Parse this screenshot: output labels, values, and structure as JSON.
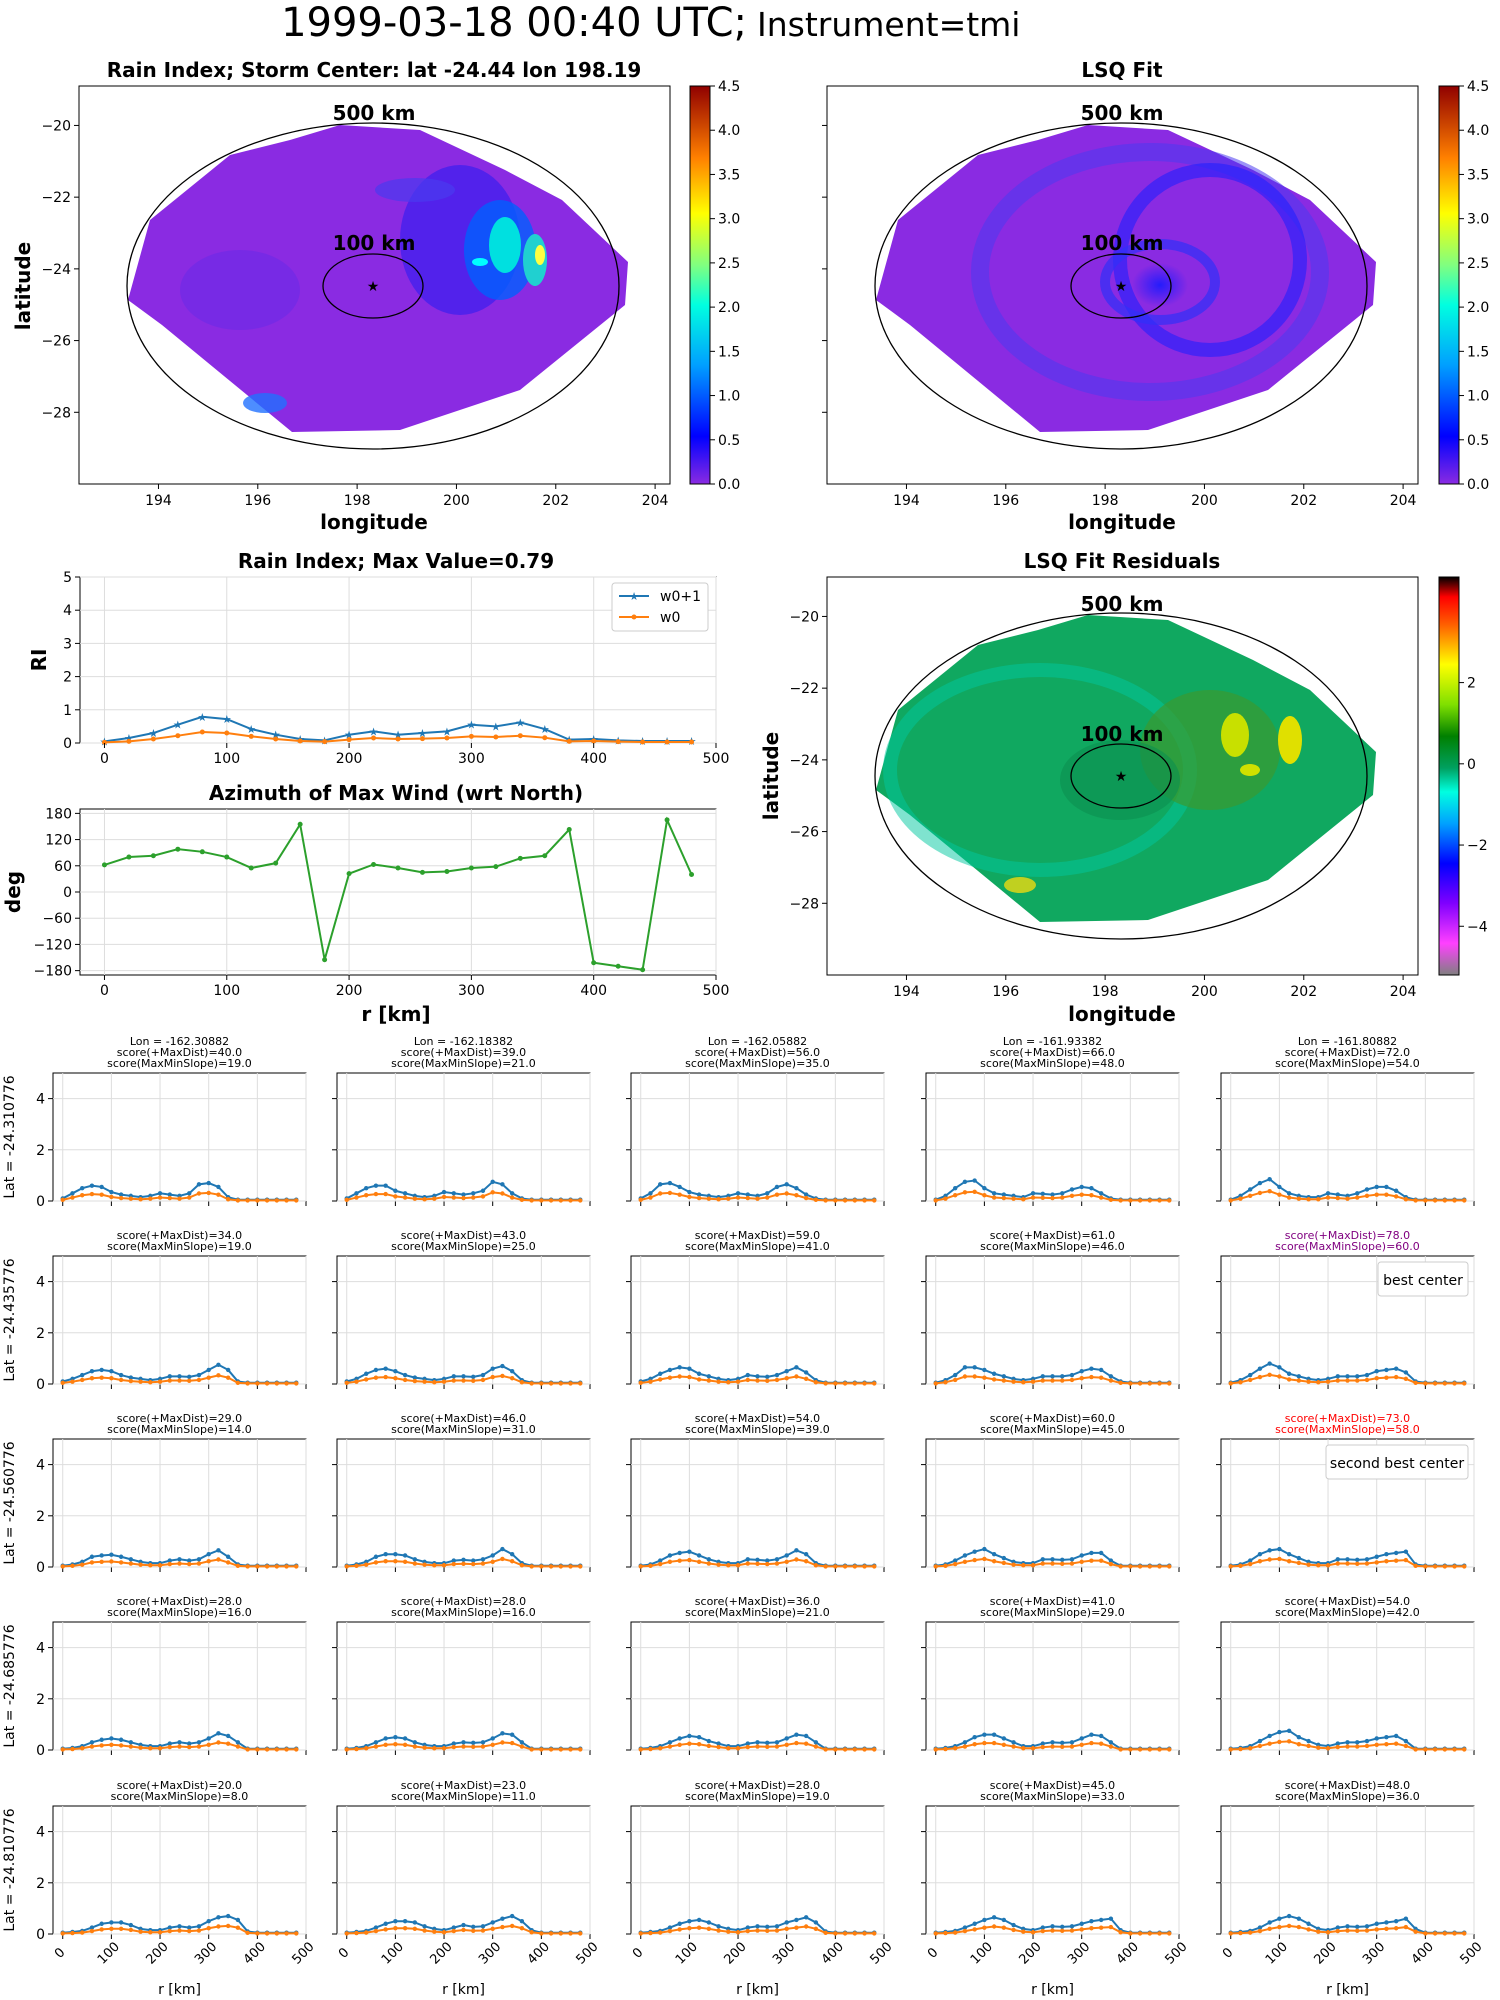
{
  "page": {
    "title_time": "1999-03-18 00:40 UTC;",
    "title_instrument": "Instrument=tmi"
  },
  "colors": {
    "w0p1": "#1f77b4",
    "w0": "#ff7f0e",
    "azimuth": "#2ca02c",
    "best": "#800080",
    "second_best": "#ff0000",
    "rain_background": "#8a2be2",
    "residual_background": "#10a860"
  },
  "map_ticks": {
    "lon": [
      194,
      196,
      198,
      200,
      202,
      204
    ],
    "lat": [
      -20,
      -22,
      -24,
      -26,
      -28
    ]
  },
  "rain_map": {
    "title": "Rain Index; Storm Center: lat -24.44 lon 198.19",
    "xlabel": "longitude",
    "ylabel": "latitude",
    "ring_outer": "500 km",
    "ring_inner": "100 km",
    "colorbar_ticks": [
      "0.0",
      "0.5",
      "1.0",
      "1.5",
      "2.0",
      "2.5",
      "3.0",
      "3.5",
      "4.0",
      "4.5"
    ],
    "colormap": "jet"
  },
  "lsq_map": {
    "title": "LSQ Fit",
    "ring_outer": "500 km",
    "ring_inner": "100 km",
    "xlabel": "longitude",
    "colorbar_ticks": [
      "0.0",
      "0.5",
      "1.0",
      "1.5",
      "2.0",
      "2.5",
      "3.0",
      "3.5",
      "4.0",
      "4.5"
    ],
    "colormap": "jet"
  },
  "residual_map": {
    "title": "LSQ Fit Residuals",
    "ring_outer": "500 km",
    "ring_inner": "100 km",
    "xlabel": "longitude",
    "ylabel": "latitude",
    "colorbar_ticks": [
      "2",
      "0",
      "−2",
      "−4"
    ],
    "colormap": "gist_ncar"
  },
  "rain_profile": {
    "title": "Rain Index; Max Value=0.79",
    "ylabel": "RI",
    "legend": [
      "w0+1",
      "w0"
    ],
    "yticks": [
      "0",
      "1",
      "2",
      "3",
      "4",
      "5"
    ],
    "xticks": [
      "0",
      "100",
      "200",
      "300",
      "400",
      "500"
    ]
  },
  "azimuth_plot": {
    "title": "Azimuth of Max Wind (wrt North)",
    "ylabel": "deg",
    "xlabel": "r [km]",
    "yticks": [
      "180",
      "120",
      "60",
      "0",
      "−60",
      "−120",
      "−180"
    ],
    "xticks": [
      "0",
      "100",
      "200",
      "300",
      "400",
      "500"
    ]
  },
  "grid": {
    "lon_header": [
      "Lon = -162.30882",
      "Lon = -162.18382",
      "Lon = -162.05882",
      "Lon = -161.93382",
      "Lon = -161.80882"
    ],
    "row_labels": [
      "Lat = -24.310776",
      "Lat = -24.435776",
      "Lat = -24.560776",
      "Lat = -24.685776",
      "Lat = -24.810776"
    ],
    "scores": [
      [
        [
          "score(+MaxDist)=40.0",
          "score(MaxMinSlope)=19.0"
        ],
        [
          "score(+MaxDist)=39.0",
          "score(MaxMinSlope)=21.0"
        ],
        [
          "score(+MaxDist)=56.0",
          "score(MaxMinSlope)=35.0"
        ],
        [
          "score(+MaxDist)=66.0",
          "score(MaxMinSlope)=48.0"
        ],
        [
          "score(+MaxDist)=72.0",
          "score(MaxMinSlope)=54.0"
        ]
      ],
      [
        [
          "score(+MaxDist)=34.0",
          "score(MaxMinSlope)=19.0"
        ],
        [
          "score(+MaxDist)=43.0",
          "score(MaxMinSlope)=25.0"
        ],
        [
          "score(+MaxDist)=59.0",
          "score(MaxMinSlope)=41.0"
        ],
        [
          "score(+MaxDist)=61.0",
          "score(MaxMinSlope)=46.0"
        ],
        [
          "score(+MaxDist)=78.0",
          "score(MaxMinSlope)=60.0"
        ]
      ],
      [
        [
          "score(+MaxDist)=29.0",
          "score(MaxMinSlope)=14.0"
        ],
        [
          "score(+MaxDist)=46.0",
          "score(MaxMinSlope)=31.0"
        ],
        [
          "score(+MaxDist)=54.0",
          "score(MaxMinSlope)=39.0"
        ],
        [
          "score(+MaxDist)=60.0",
          "score(MaxMinSlope)=45.0"
        ],
        [
          "score(+MaxDist)=73.0",
          "score(MaxMinSlope)=58.0"
        ]
      ],
      [
        [
          "score(+MaxDist)=28.0",
          "score(MaxMinSlope)=16.0"
        ],
        [
          "score(+MaxDist)=28.0",
          "score(MaxMinSlope)=16.0"
        ],
        [
          "score(+MaxDist)=36.0",
          "score(MaxMinSlope)=21.0"
        ],
        [
          "score(+MaxDist)=41.0",
          "score(MaxMinSlope)=29.0"
        ],
        [
          "score(+MaxDist)=54.0",
          "score(MaxMinSlope)=42.0"
        ]
      ],
      [
        [
          "score(+MaxDist)=20.0",
          "score(MaxMinSlope)=8.0"
        ],
        [
          "score(+MaxDist)=23.0",
          "score(MaxMinSlope)=11.0"
        ],
        [
          "score(+MaxDist)=28.0",
          "score(MaxMinSlope)=19.0"
        ],
        [
          "score(+MaxDist)=45.0",
          "score(MaxMinSlope)=33.0"
        ],
        [
          "score(+MaxDist)=48.0",
          "score(MaxMinSlope)=36.0"
        ]
      ]
    ],
    "best_label": "best center",
    "second_best_label": "second best center",
    "yticks": [
      "0",
      "2",
      "4"
    ],
    "xticks": [
      "0",
      "100",
      "200",
      "300",
      "400",
      "500"
    ],
    "xlabel": "r [km]"
  },
  "chart_data": [
    {
      "type": "line",
      "name": "rain_index_profile",
      "x": [
        0,
        20,
        40,
        60,
        80,
        100,
        120,
        140,
        160,
        180,
        200,
        220,
        240,
        260,
        280,
        300,
        320,
        340,
        360,
        380,
        400,
        420,
        440,
        460,
        480
      ],
      "series": [
        {
          "name": "w0+1",
          "values": [
            0.05,
            0.15,
            0.3,
            0.55,
            0.79,
            0.72,
            0.42,
            0.25,
            0.12,
            0.08,
            0.25,
            0.35,
            0.25,
            0.3,
            0.35,
            0.55,
            0.5,
            0.62,
            0.42,
            0.1,
            0.12,
            0.08,
            0.06,
            0.06,
            0.06
          ]
        },
        {
          "name": "w0",
          "values": [
            0.02,
            0.05,
            0.12,
            0.22,
            0.33,
            0.3,
            0.2,
            0.12,
            0.06,
            0.04,
            0.1,
            0.15,
            0.12,
            0.13,
            0.15,
            0.2,
            0.18,
            0.22,
            0.16,
            0.05,
            0.06,
            0.04,
            0.03,
            0.03,
            0.03
          ]
        }
      ],
      "ylim": [
        0,
        5
      ],
      "xlim": [
        -20,
        500
      ]
    },
    {
      "type": "line",
      "name": "azimuth_of_max_wind",
      "x": [
        0,
        20,
        40,
        60,
        80,
        100,
        120,
        140,
        160,
        180,
        200,
        220,
        240,
        260,
        280,
        300,
        320,
        340,
        360,
        380,
        400,
        420,
        440,
        460,
        480
      ],
      "values": [
        62,
        80,
        83,
        98,
        92,
        80,
        55,
        66,
        155,
        -155,
        42,
        63,
        55,
        45,
        47,
        55,
        58,
        77,
        83,
        143,
        -162,
        -170,
        -178,
        165,
        40
      ],
      "ylim": [
        -180,
        180
      ],
      "xlim": [
        -20,
        500
      ]
    },
    {
      "type": "line",
      "name": "candidate_center_profiles",
      "x": [
        0,
        20,
        40,
        60,
        80,
        100,
        120,
        140,
        160,
        180,
        200,
        220,
        240,
        260,
        280,
        300,
        320,
        340,
        360,
        380,
        400,
        420,
        440,
        460,
        480
      ],
      "ylim": [
        0,
        5
      ],
      "series_names": [
        "w0+1",
        "w0"
      ],
      "w0_ratio": 0.45,
      "rows": [
        [
          [
            0.1,
            0.3,
            0.5,
            0.6,
            0.55,
            0.35,
            0.25,
            0.2,
            0.15,
            0.2,
            0.3,
            0.25,
            0.2,
            0.3,
            0.65,
            0.7,
            0.55,
            0.15,
            0.05,
            0.05,
            0.05,
            0.05,
            0.05,
            0.05,
            0.05
          ],
          [
            0.1,
            0.3,
            0.5,
            0.6,
            0.6,
            0.4,
            0.3,
            0.2,
            0.15,
            0.2,
            0.35,
            0.3,
            0.25,
            0.3,
            0.4,
            0.75,
            0.65,
            0.3,
            0.1,
            0.05,
            0.05,
            0.05,
            0.05,
            0.05,
            0.05
          ],
          [
            0.1,
            0.3,
            0.65,
            0.7,
            0.55,
            0.35,
            0.25,
            0.2,
            0.15,
            0.2,
            0.3,
            0.25,
            0.2,
            0.3,
            0.55,
            0.65,
            0.5,
            0.25,
            0.1,
            0.05,
            0.05,
            0.05,
            0.05,
            0.05,
            0.05
          ],
          [
            0.05,
            0.2,
            0.5,
            0.75,
            0.8,
            0.5,
            0.3,
            0.25,
            0.2,
            0.15,
            0.3,
            0.28,
            0.25,
            0.3,
            0.45,
            0.55,
            0.5,
            0.3,
            0.1,
            0.05,
            0.05,
            0.05,
            0.05,
            0.05,
            0.05
          ],
          [
            0.05,
            0.2,
            0.45,
            0.7,
            0.85,
            0.55,
            0.3,
            0.2,
            0.15,
            0.15,
            0.3,
            0.25,
            0.2,
            0.3,
            0.45,
            0.55,
            0.55,
            0.4,
            0.15,
            0.05,
            0.05,
            0.05,
            0.05,
            0.05,
            0.05
          ]
        ],
        [
          [
            0.1,
            0.2,
            0.35,
            0.5,
            0.55,
            0.5,
            0.35,
            0.25,
            0.2,
            0.15,
            0.2,
            0.3,
            0.3,
            0.28,
            0.35,
            0.55,
            0.75,
            0.55,
            0.1,
            0.05,
            0.05,
            0.05,
            0.05,
            0.05,
            0.05
          ],
          [
            0.1,
            0.2,
            0.4,
            0.55,
            0.6,
            0.5,
            0.35,
            0.25,
            0.2,
            0.15,
            0.2,
            0.3,
            0.3,
            0.28,
            0.35,
            0.6,
            0.7,
            0.5,
            0.15,
            0.05,
            0.05,
            0.05,
            0.05,
            0.05,
            0.05
          ],
          [
            0.1,
            0.2,
            0.4,
            0.55,
            0.65,
            0.6,
            0.4,
            0.3,
            0.2,
            0.15,
            0.2,
            0.35,
            0.3,
            0.28,
            0.35,
            0.5,
            0.65,
            0.45,
            0.15,
            0.05,
            0.05,
            0.05,
            0.05,
            0.05,
            0.05
          ],
          [
            0.05,
            0.15,
            0.35,
            0.65,
            0.65,
            0.55,
            0.4,
            0.3,
            0.2,
            0.15,
            0.2,
            0.3,
            0.3,
            0.3,
            0.35,
            0.5,
            0.6,
            0.55,
            0.3,
            0.1,
            0.05,
            0.05,
            0.05,
            0.05,
            0.05
          ],
          [
            0.05,
            0.15,
            0.35,
            0.6,
            0.8,
            0.65,
            0.4,
            0.3,
            0.2,
            0.15,
            0.2,
            0.3,
            0.3,
            0.3,
            0.35,
            0.5,
            0.55,
            0.6,
            0.45,
            0.1,
            0.05,
            0.05,
            0.05,
            0.05,
            0.05
          ]
        ],
        [
          [
            0.05,
            0.1,
            0.2,
            0.4,
            0.45,
            0.48,
            0.4,
            0.3,
            0.2,
            0.15,
            0.15,
            0.25,
            0.3,
            0.25,
            0.3,
            0.5,
            0.65,
            0.4,
            0.1,
            0.05,
            0.05,
            0.05,
            0.05,
            0.05,
            0.05
          ],
          [
            0.05,
            0.1,
            0.2,
            0.4,
            0.5,
            0.5,
            0.45,
            0.3,
            0.2,
            0.15,
            0.15,
            0.25,
            0.28,
            0.25,
            0.3,
            0.45,
            0.7,
            0.5,
            0.15,
            0.05,
            0.05,
            0.05,
            0.05,
            0.05,
            0.05
          ],
          [
            0.05,
            0.1,
            0.25,
            0.45,
            0.55,
            0.6,
            0.45,
            0.3,
            0.2,
            0.15,
            0.15,
            0.3,
            0.28,
            0.25,
            0.3,
            0.45,
            0.65,
            0.5,
            0.15,
            0.05,
            0.05,
            0.05,
            0.05,
            0.05,
            0.05
          ],
          [
            0.05,
            0.1,
            0.25,
            0.45,
            0.6,
            0.7,
            0.5,
            0.35,
            0.2,
            0.15,
            0.15,
            0.3,
            0.3,
            0.28,
            0.3,
            0.45,
            0.55,
            0.55,
            0.25,
            0.05,
            0.05,
            0.05,
            0.05,
            0.05,
            0.05
          ],
          [
            0.05,
            0.1,
            0.25,
            0.5,
            0.65,
            0.7,
            0.5,
            0.35,
            0.2,
            0.15,
            0.15,
            0.3,
            0.3,
            0.28,
            0.3,
            0.4,
            0.5,
            0.55,
            0.6,
            0.1,
            0.05,
            0.05,
            0.05,
            0.05,
            0.05
          ]
        ],
        [
          [
            0.05,
            0.08,
            0.15,
            0.3,
            0.4,
            0.45,
            0.4,
            0.3,
            0.2,
            0.15,
            0.15,
            0.25,
            0.3,
            0.25,
            0.3,
            0.45,
            0.65,
            0.55,
            0.3,
            0.05,
            0.05,
            0.05,
            0.05,
            0.05,
            0.05
          ],
          [
            0.05,
            0.08,
            0.15,
            0.3,
            0.45,
            0.5,
            0.45,
            0.3,
            0.2,
            0.15,
            0.15,
            0.25,
            0.3,
            0.28,
            0.3,
            0.45,
            0.65,
            0.6,
            0.3,
            0.05,
            0.05,
            0.05,
            0.05,
            0.05,
            0.05
          ],
          [
            0.05,
            0.08,
            0.15,
            0.3,
            0.45,
            0.55,
            0.5,
            0.35,
            0.25,
            0.15,
            0.15,
            0.25,
            0.3,
            0.28,
            0.3,
            0.45,
            0.6,
            0.55,
            0.3,
            0.05,
            0.05,
            0.05,
            0.05,
            0.05,
            0.05
          ],
          [
            0.05,
            0.08,
            0.15,
            0.3,
            0.5,
            0.6,
            0.6,
            0.45,
            0.3,
            0.15,
            0.15,
            0.25,
            0.3,
            0.28,
            0.3,
            0.45,
            0.6,
            0.55,
            0.3,
            0.05,
            0.05,
            0.05,
            0.05,
            0.05,
            0.05
          ],
          [
            0.05,
            0.08,
            0.15,
            0.35,
            0.55,
            0.7,
            0.75,
            0.5,
            0.35,
            0.2,
            0.15,
            0.25,
            0.3,
            0.3,
            0.35,
            0.45,
            0.5,
            0.55,
            0.35,
            0.05,
            0.05,
            0.05,
            0.05,
            0.05,
            0.05
          ]
        ],
        [
          [
            0.05,
            0.08,
            0.12,
            0.25,
            0.4,
            0.45,
            0.45,
            0.35,
            0.2,
            0.15,
            0.15,
            0.25,
            0.3,
            0.25,
            0.3,
            0.5,
            0.65,
            0.7,
            0.55,
            0.1,
            0.05,
            0.05,
            0.05,
            0.05,
            0.05
          ],
          [
            0.05,
            0.08,
            0.12,
            0.25,
            0.4,
            0.5,
            0.5,
            0.45,
            0.3,
            0.2,
            0.15,
            0.25,
            0.35,
            0.28,
            0.3,
            0.45,
            0.6,
            0.7,
            0.5,
            0.15,
            0.05,
            0.05,
            0.05,
            0.05,
            0.05
          ],
          [
            0.05,
            0.08,
            0.12,
            0.25,
            0.4,
            0.5,
            0.55,
            0.45,
            0.3,
            0.2,
            0.15,
            0.25,
            0.3,
            0.28,
            0.3,
            0.45,
            0.55,
            0.65,
            0.45,
            0.1,
            0.05,
            0.05,
            0.05,
            0.05,
            0.05
          ],
          [
            0.05,
            0.08,
            0.12,
            0.25,
            0.4,
            0.55,
            0.65,
            0.55,
            0.35,
            0.2,
            0.15,
            0.25,
            0.3,
            0.28,
            0.3,
            0.4,
            0.5,
            0.55,
            0.6,
            0.15,
            0.05,
            0.05,
            0.05,
            0.05,
            0.05
          ],
          [
            0.05,
            0.08,
            0.12,
            0.25,
            0.45,
            0.6,
            0.7,
            0.6,
            0.4,
            0.2,
            0.15,
            0.25,
            0.3,
            0.28,
            0.3,
            0.4,
            0.45,
            0.5,
            0.6,
            0.2,
            0.05,
            0.05,
            0.05,
            0.05,
            0.05
          ]
        ]
      ]
    }
  ]
}
